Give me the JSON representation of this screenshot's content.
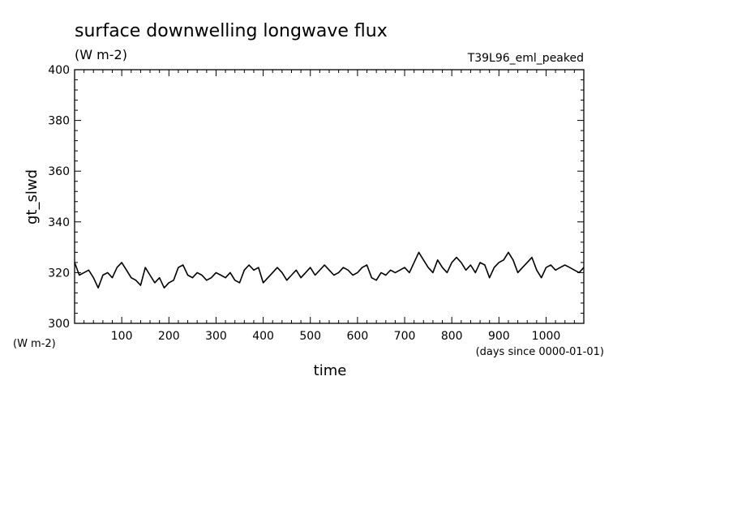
{
  "chart_data": {
    "type": "line",
    "title": "surface downwelling longwave flux",
    "units_label": "(W m-2)",
    "run_label": "T39L96_eml_peaked",
    "xlabel": "time",
    "xunits": "(days since 0000-01-01)",
    "ylabel": "gt_slwd",
    "yunits": "(W m-2)",
    "xlim": [
      0,
      1080
    ],
    "ylim": [
      300,
      400
    ],
    "xticks": [
      100,
      200,
      300,
      400,
      500,
      600,
      700,
      800,
      900,
      1000
    ],
    "yticks": [
      300,
      320,
      340,
      360,
      380,
      400
    ],
    "grid": false,
    "line_color": "#000000",
    "series": [
      {
        "x": [
          0,
          10,
          20,
          30,
          40,
          50,
          60,
          70,
          80,
          90,
          100,
          110,
          120,
          130,
          140,
          150,
          160,
          170,
          180,
          190,
          200,
          210,
          220,
          230,
          240,
          250,
          260,
          270,
          280,
          290,
          300,
          310,
          320,
          330,
          340,
          350,
          360,
          370,
          380,
          390,
          400,
          410,
          420,
          430,
          440,
          450,
          460,
          470,
          480,
          490,
          500,
          510,
          520,
          530,
          540,
          550,
          560,
          570,
          580,
          590,
          600,
          610,
          620,
          630,
          640,
          650,
          660,
          670,
          680,
          690,
          700,
          710,
          720,
          730,
          740,
          750,
          760,
          770,
          780,
          790,
          800,
          810,
          820,
          830,
          840,
          850,
          860,
          870,
          880,
          890,
          900,
          910,
          920,
          930,
          940,
          950,
          960,
          970,
          980,
          990,
          1000,
          1010,
          1020,
          1030,
          1040,
          1050,
          1060,
          1070,
          1080
        ],
        "values": [
          324,
          319,
          320,
          321,
          318,
          314,
          319,
          320,
          318,
          322,
          324,
          321,
          318,
          317,
          315,
          322,
          319,
          316,
          318,
          314,
          316,
          317,
          322,
          323,
          319,
          318,
          320,
          319,
          317,
          318,
          320,
          319,
          318,
          320,
          317,
          316,
          321,
          323,
          321,
          322,
          316,
          318,
          320,
          322,
          320,
          317,
          319,
          321,
          318,
          320,
          322,
          319,
          321,
          323,
          321,
          319,
          320,
          322,
          321,
          319,
          320,
          322,
          323,
          318,
          317,
          320,
          319,
          321,
          320,
          321,
          322,
          320,
          324,
          328,
          325,
          322,
          320,
          325,
          322,
          320,
          324,
          326,
          324,
          321,
          323,
          320,
          324,
          323,
          318,
          322,
          324,
          325,
          328,
          325,
          320,
          322,
          324,
          326,
          321,
          318,
          322,
          323,
          321,
          322,
          323,
          322,
          321,
          320,
          322
        ]
      }
    ]
  }
}
